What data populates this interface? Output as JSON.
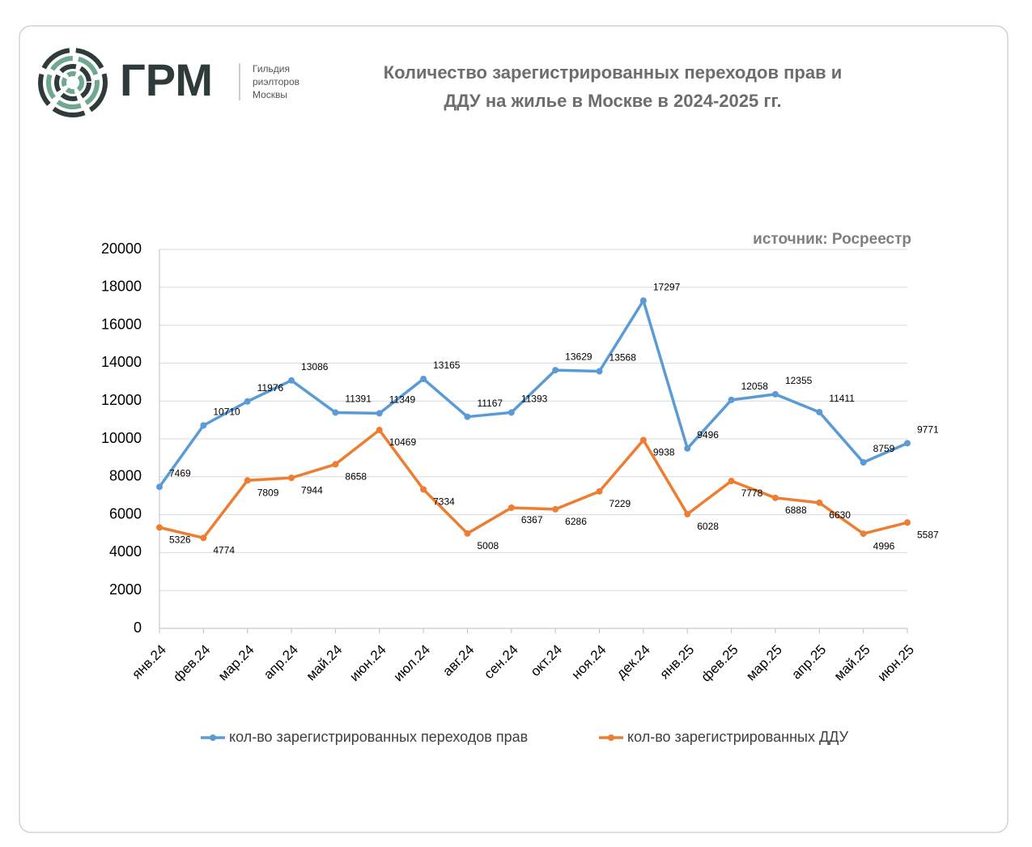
{
  "logo": {
    "name": "ГРМ",
    "lines": [
      "Гильдия",
      "риэлторов",
      "Москвы"
    ]
  },
  "chart_data": {
    "type": "line",
    "title": [
      "Количество зарегистрированных переходов прав и",
      "ДДУ  на жилье в  Москве в 2024-2025 гг."
    ],
    "source": "источник: Росреестр",
    "categories": [
      "янв.24",
      "фев.24",
      "мар.24",
      "апр.24",
      "май.24",
      "июн.24",
      "июл.24",
      "авг.24",
      "сен.24",
      "окт.24",
      "ноя.24",
      "дек.24",
      "янв.25",
      "фев.25",
      "мар.25",
      "апр.25",
      "май.25",
      "июн.25"
    ],
    "series": [
      {
        "name": "кол-во зарегистрированных переходов прав",
        "color": "#5b9bd5",
        "values": [
          7469,
          10710,
          11976,
          13086,
          11391,
          11349,
          13165,
          11167,
          11393,
          13629,
          13568,
          17297,
          9496,
          12058,
          12355,
          11411,
          8759,
          9771
        ]
      },
      {
        "name": "кол-во зарегистрированных ДДУ",
        "color": "#ed7d31",
        "values": [
          5326,
          4774,
          7809,
          7944,
          8658,
          10469,
          7334,
          5008,
          6367,
          6286,
          7229,
          9938,
          6028,
          7778,
          6888,
          6630,
          4996,
          5587
        ]
      }
    ],
    "ylim": [
      0,
      20000
    ],
    "yticks": [
      0,
      2000,
      4000,
      6000,
      8000,
      10000,
      12000,
      14000,
      16000,
      18000,
      20000
    ],
    "grid": true,
    "legend": "bottom"
  }
}
